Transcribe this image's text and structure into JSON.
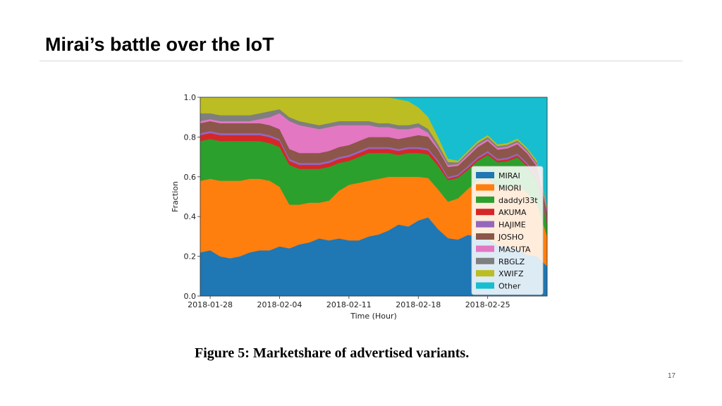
{
  "slide": {
    "title": "Mirai’s battle over the IoT",
    "caption": "Figure 5: Marketshare of advertised variants.",
    "page_number": "17"
  },
  "chart_data": {
    "type": "area",
    "stacked": true,
    "normalized": true,
    "xlabel": "Time (Hour)",
    "ylabel": "Fraction",
    "ylim": [
      0,
      1
    ],
    "yticks": [
      "0.0",
      "0.2",
      "0.4",
      "0.6",
      "0.8",
      "1.0"
    ],
    "xticks": [
      "2018-01-28",
      "2018-02-04",
      "2018-02-11",
      "2018-02-18",
      "2018-02-25"
    ],
    "x": [
      "2018-01-27",
      "2018-01-28",
      "2018-01-29",
      "2018-01-30",
      "2018-01-31",
      "2018-02-01",
      "2018-02-02",
      "2018-02-03",
      "2018-02-04",
      "2018-02-05",
      "2018-02-06",
      "2018-02-07",
      "2018-02-08",
      "2018-02-09",
      "2018-02-10",
      "2018-02-11",
      "2018-02-12",
      "2018-02-13",
      "2018-02-14",
      "2018-02-15",
      "2018-02-16",
      "2018-02-17",
      "2018-02-18",
      "2018-02-19",
      "2018-02-20",
      "2018-02-21",
      "2018-02-22",
      "2018-02-23",
      "2018-02-24",
      "2018-02-25",
      "2018-02-26",
      "2018-02-27",
      "2018-02-28",
      "2018-03-01",
      "2018-03-02",
      "2018-03-03"
    ],
    "legend_position": "lower-right",
    "series": [
      {
        "name": "MIRAI",
        "color": "#1f77b4",
        "values": [
          0.22,
          0.23,
          0.2,
          0.19,
          0.2,
          0.22,
          0.23,
          0.23,
          0.25,
          0.24,
          0.26,
          0.27,
          0.29,
          0.28,
          0.29,
          0.28,
          0.28,
          0.3,
          0.31,
          0.33,
          0.36,
          0.35,
          0.38,
          0.4,
          0.37,
          0.35,
          0.33,
          0.32,
          0.3,
          0.29,
          0.28,
          0.27,
          0.25,
          0.22,
          0.2,
          0.15
        ]
      },
      {
        "name": "MIORI",
        "color": "#ff7f0e",
        "values": [
          0.36,
          0.36,
          0.38,
          0.39,
          0.38,
          0.37,
          0.36,
          0.35,
          0.3,
          0.22,
          0.2,
          0.2,
          0.18,
          0.2,
          0.24,
          0.28,
          0.29,
          0.28,
          0.28,
          0.27,
          0.24,
          0.25,
          0.22,
          0.2,
          0.22,
          0.22,
          0.24,
          0.24,
          0.28,
          0.3,
          0.32,
          0.32,
          0.34,
          0.33,
          0.26,
          0.15
        ]
      },
      {
        "name": "daddyl33t",
        "color": "#2ca02c",
        "values": [
          0.2,
          0.2,
          0.2,
          0.2,
          0.2,
          0.19,
          0.19,
          0.19,
          0.2,
          0.2,
          0.18,
          0.17,
          0.17,
          0.17,
          0.14,
          0.12,
          0.13,
          0.14,
          0.13,
          0.12,
          0.11,
          0.12,
          0.12,
          0.12,
          0.13,
          0.13,
          0.12,
          0.1,
          0.1,
          0.12,
          0.14,
          0.15,
          0.15,
          0.14,
          0.12,
          0.06
        ]
      },
      {
        "name": "AKUMA",
        "color": "#d62728",
        "values": [
          0.03,
          0.03,
          0.03,
          0.03,
          0.03,
          0.03,
          0.03,
          0.03,
          0.03,
          0.02,
          0.02,
          0.02,
          0.02,
          0.02,
          0.02,
          0.02,
          0.02,
          0.02,
          0.02,
          0.02,
          0.02,
          0.02,
          0.02,
          0.02,
          0.02,
          0.01,
          0.01,
          0.01,
          0.01,
          0.01,
          0.01,
          0.01,
          0.01,
          0.01,
          0.01,
          0.01
        ]
      },
      {
        "name": "HAJIME",
        "color": "#9467bd",
        "values": [
          0.01,
          0.01,
          0.01,
          0.01,
          0.01,
          0.01,
          0.01,
          0.01,
          0.01,
          0.01,
          0.01,
          0.01,
          0.01,
          0.01,
          0.01,
          0.01,
          0.01,
          0.01,
          0.01,
          0.01,
          0.01,
          0.01,
          0.01,
          0.01,
          0.01,
          0.01,
          0.01,
          0.01,
          0.01,
          0.01,
          0.01,
          0.01,
          0.01,
          0.01,
          0.01,
          0.01
        ]
      },
      {
        "name": "JOSHO",
        "color": "#8c564b",
        "values": [
          0.05,
          0.05,
          0.05,
          0.05,
          0.05,
          0.05,
          0.05,
          0.05,
          0.05,
          0.05,
          0.05,
          0.05,
          0.05,
          0.05,
          0.05,
          0.05,
          0.05,
          0.05,
          0.05,
          0.05,
          0.05,
          0.05,
          0.06,
          0.06,
          0.06,
          0.06,
          0.05,
          0.05,
          0.05,
          0.05,
          0.05,
          0.05,
          0.05,
          0.05,
          0.05,
          0.04
        ]
      },
      {
        "name": "MASUTA",
        "color": "#e377c2",
        "values": [
          0.01,
          0.01,
          0.01,
          0.01,
          0.01,
          0.01,
          0.02,
          0.04,
          0.08,
          0.14,
          0.14,
          0.13,
          0.12,
          0.12,
          0.11,
          0.1,
          0.08,
          0.06,
          0.05,
          0.05,
          0.05,
          0.04,
          0.04,
          0.02,
          0.01,
          0.01,
          0.01,
          0.01,
          0.01,
          0.01,
          0.01,
          0.01,
          0.01,
          0.01,
          0.01,
          0.01
        ]
      },
      {
        "name": "RBGLZ",
        "color": "#7f7f7f",
        "values": [
          0.04,
          0.03,
          0.03,
          0.03,
          0.03,
          0.03,
          0.03,
          0.03,
          0.02,
          0.02,
          0.02,
          0.02,
          0.02,
          0.02,
          0.02,
          0.02,
          0.02,
          0.02,
          0.02,
          0.02,
          0.02,
          0.02,
          0.02,
          0.02,
          0.02,
          0.02,
          0.01,
          0.01,
          0.01,
          0.01,
          0.01,
          0.01,
          0.01,
          0.01,
          0.01,
          0.01
        ]
      },
      {
        "name": "XWIFZ",
        "color": "#bcbd22",
        "values": [
          0.08,
          0.08,
          0.09,
          0.09,
          0.09,
          0.09,
          0.08,
          0.07,
          0.06,
          0.1,
          0.12,
          0.13,
          0.14,
          0.13,
          0.12,
          0.12,
          0.12,
          0.12,
          0.13,
          0.13,
          0.13,
          0.12,
          0.08,
          0.06,
          0.04,
          0.02,
          0.01,
          0.01,
          0.01,
          0.01,
          0.01,
          0.01,
          0.01,
          0.01,
          0.01,
          0.01
        ]
      },
      {
        "name": "Other",
        "color": "#17becf",
        "values": [
          0.0,
          0.0,
          0.0,
          0.0,
          0.0,
          0.0,
          0.0,
          0.0,
          0.0,
          0.0,
          0.0,
          0.0,
          0.0,
          0.0,
          0.0,
          0.0,
          0.0,
          0.0,
          0.0,
          0.0,
          0.01,
          0.02,
          0.05,
          0.1,
          0.22,
          0.37,
          0.37,
          0.28,
          0.22,
          0.19,
          0.26,
          0.25,
          0.22,
          0.27,
          0.32,
          0.55
        ]
      }
    ]
  }
}
